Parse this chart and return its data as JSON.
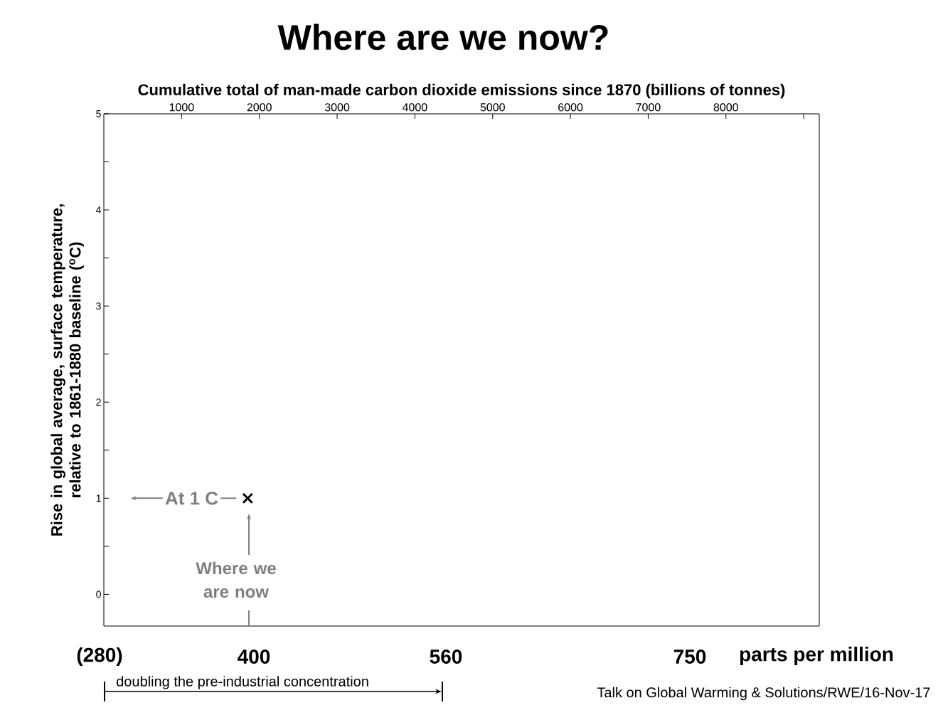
{
  "chart_data": {
    "type": "scatter",
    "title": "Where are we now?",
    "xlabel": "Cumulative total of man-made carbon dioxide emissions since 1870 (billions of tonnes)",
    "ylabel": "Rise in global average, surface temperature, relative to 1861-1880 baseline ($^{o}$C)",
    "x": [
      1850
    ],
    "values": [
      1
    ],
    "color": "#000000",
    "marker": "cross",
    "xlim": [
      0,
      9200
    ],
    "xticks": [
      1000,
      2000,
      3000,
      4000,
      5000,
      6000,
      7000,
      8000,
      {
        "value": 9000,
        "label": null
      }
    ],
    "ylim": [
      -0.33,
      5
    ],
    "yticks": [
      0,
      {
        "value": 0.5,
        "label": null
      },
      1,
      {
        "value": 1.5,
        "label": null
      },
      2,
      {
        "value": 2.5,
        "label": null
      },
      3,
      {
        "value": 3.5,
        "label": null
      },
      4,
      {
        "value": 4.5,
        "label": null
      },
      5
    ],
    "grid": false,
    "annotations": [
      {
        "text": "At 1 C",
        "x": 1850,
        "y": 1
      },
      "Where we are now",
      "(280)",
      "400",
      "560",
      "750",
      "parts per million",
      "doubling the pre-industrial concentration",
      "Talk on Global Warming & Solutions/RWE/16-Nov-17"
    ]
  }
}
